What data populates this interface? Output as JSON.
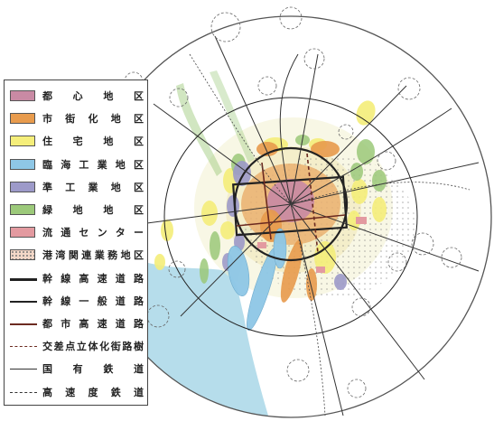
{
  "legend": {
    "items": [
      {
        "label": "都心地区",
        "kind": "fill",
        "color": "#c98aa4"
      },
      {
        "label": "市街化地区",
        "kind": "fill",
        "color": "#e89b4d"
      },
      {
        "label": "住宅地区",
        "kind": "fill",
        "color": "#f5ee7a"
      },
      {
        "label": "臨海工業地区",
        "kind": "fill",
        "color": "#8ec7e6"
      },
      {
        "label": "準工業地区",
        "kind": "fill",
        "color": "#9d9ac9"
      },
      {
        "label": "緑地地区",
        "kind": "fill",
        "color": "#9cc97a"
      },
      {
        "label": "流通センター",
        "kind": "fill",
        "color": "#e39aa0"
      },
      {
        "label": "港湾関連業務地区",
        "kind": "dots",
        "color": "#f3d7c7"
      },
      {
        "label": "幹線高速道路",
        "kind": "line",
        "color": "#222222",
        "style": "solid-thick"
      },
      {
        "label": "幹線一般道路",
        "kind": "line",
        "color": "#222222",
        "style": "solid-bold"
      },
      {
        "label": "都市高速道路",
        "kind": "line",
        "color": "#6b2a20",
        "style": "solid-bold"
      },
      {
        "label": "交差点立体化街路樹",
        "kind": "line",
        "color": "#6b2a20",
        "style": "dashed"
      },
      {
        "label": "国有鉄道",
        "kind": "line",
        "color": "#333333",
        "style": "solid-thin"
      },
      {
        "label": "高速度鉄道",
        "kind": "line",
        "color": "#333333",
        "style": "dotted"
      }
    ]
  },
  "map": {
    "colors": {
      "sea": "#a9d7e8",
      "boundary": "#555555",
      "road": "#333333",
      "satellite_circle": "#666666"
    }
  }
}
